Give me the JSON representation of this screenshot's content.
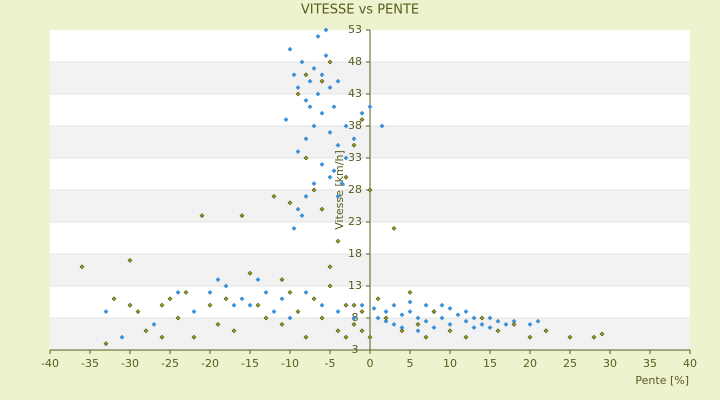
{
  "chart_data": {
    "type": "scatter",
    "title": "VITESSE vs PENTE",
    "xlabel": "Pente [%]",
    "ylabel": "Vitesse [km/h]",
    "xlim": [
      -40,
      40
    ],
    "xticks": [
      -40,
      -35,
      -30,
      -25,
      -20,
      -15,
      -10,
      -5,
      0,
      5,
      10,
      15,
      20,
      25,
      30,
      35,
      40
    ],
    "ylim": [
      3,
      53
    ],
    "yticks": [
      3,
      8,
      13,
      18,
      23,
      28,
      33,
      38,
      43,
      48,
      53
    ],
    "grid": true,
    "series": [
      {
        "color": "#3a8fd6",
        "x": [
          -10,
          -9.5,
          -9,
          -8.5,
          -8,
          -7.5,
          -7,
          -6.5,
          -6,
          -5.5,
          -5,
          -4.5,
          -4,
          -6,
          -7,
          -8,
          -9,
          -5,
          -4,
          -3,
          -6,
          -5,
          -7,
          -8,
          -9,
          -9.5,
          -8.5,
          -4,
          -3,
          -2,
          -1,
          0,
          -6.5,
          -5.5,
          -7.5,
          -10.5,
          -4.5,
          -3.5,
          1.5,
          1,
          2,
          3,
          4,
          5,
          6,
          7,
          8,
          9,
          10,
          11,
          12,
          13,
          14,
          15,
          16,
          17,
          18,
          20,
          21,
          22,
          3,
          5,
          7,
          9,
          4,
          6,
          8,
          10,
          12,
          2,
          0.5,
          13,
          15,
          -20,
          -18,
          -16,
          -15,
          -13,
          -12,
          -11,
          -10,
          -14,
          -17,
          -22,
          -24,
          -33,
          -31,
          -27,
          -19,
          -8,
          -6,
          -4,
          -2,
          -1
        ],
        "values": [
          50,
          46,
          44,
          48,
          42,
          45,
          47,
          43,
          46,
          49,
          44,
          41,
          45,
          40,
          38,
          36,
          34,
          37,
          35,
          33,
          32,
          30,
          29,
          27,
          25,
          22,
          24,
          27,
          38,
          36,
          40,
          41,
          52,
          53,
          41,
          39,
          31,
          29,
          38,
          8,
          9,
          7,
          8.5,
          9,
          8,
          7.5,
          9,
          8,
          7,
          8.5,
          7.5,
          8,
          7,
          8,
          7.5,
          7,
          7.5,
          7,
          7.5,
          6,
          10,
          10.5,
          10,
          10,
          6.5,
          6,
          6.5,
          9.5,
          9,
          7.5,
          9.5,
          6.5,
          6.5,
          12,
          13,
          11,
          10,
          12,
          9,
          11,
          8,
          14,
          10,
          9,
          12,
          9,
          5,
          7,
          14,
          12,
          10,
          9,
          8,
          10
        ]
      },
      {
        "color": "#9aa21e",
        "x": [
          -36,
          -32,
          -30,
          -29,
          -28,
          -26,
          -25,
          -24,
          -23,
          -22,
          -21,
          -20,
          -19,
          -18,
          -17,
          -16,
          -15,
          -14,
          -13,
          -12,
          -11,
          -10,
          -9,
          -8,
          -7,
          -6,
          -5,
          -4,
          -3,
          -2,
          -1,
          0,
          1,
          2,
          3,
          4,
          5,
          6,
          7,
          8,
          10,
          12,
          14,
          16,
          18,
          20,
          22,
          25,
          28,
          29,
          -5,
          -4,
          -6,
          -3,
          -2,
          -1,
          -7,
          -8,
          -6,
          -5,
          -3,
          -2,
          -1,
          0,
          -9,
          -8,
          -10,
          -11,
          -33,
          -26,
          -30
        ],
        "values": [
          16,
          11,
          17,
          9,
          6,
          5,
          11,
          8,
          12,
          5,
          24,
          10,
          7,
          11,
          6,
          24,
          15,
          10,
          8,
          27,
          7,
          12,
          9,
          5,
          11,
          8,
          13,
          6,
          10,
          7,
          9,
          5,
          11,
          8,
          22,
          6,
          12,
          7,
          5,
          9,
          6,
          5,
          8,
          6,
          7,
          5,
          6,
          5,
          5,
          5.5,
          16,
          20,
          25,
          30,
          35,
          39,
          28,
          33,
          45,
          48,
          5,
          10,
          6,
          28,
          43,
          46,
          26,
          14,
          4,
          10,
          10
        ]
      }
    ]
  }
}
